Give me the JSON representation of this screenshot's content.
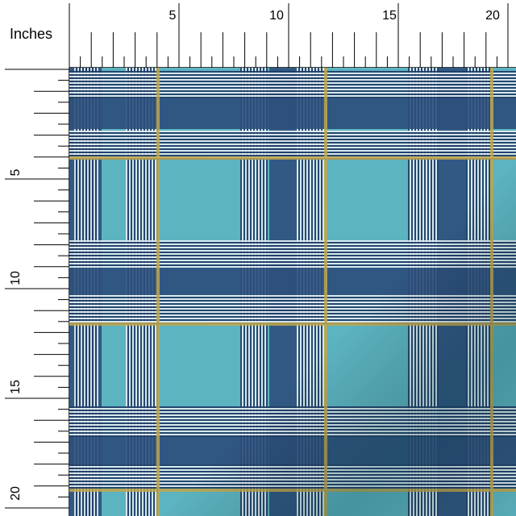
{
  "ruler": {
    "unit_label": "Inches",
    "top_labels": [
      "5",
      "10",
      "15",
      "20"
    ],
    "left_labels": [
      "5",
      "10",
      "15",
      "20"
    ]
  },
  "fabric": {
    "pattern": "plaid",
    "colors": {
      "teal": "#5cb4c0",
      "navy": "#2c4f7c",
      "navy_dark": "#1e3b63",
      "stripe_white": "#e2eef2",
      "gold_line": "#c2a84c",
      "background": "#ffffff"
    }
  }
}
